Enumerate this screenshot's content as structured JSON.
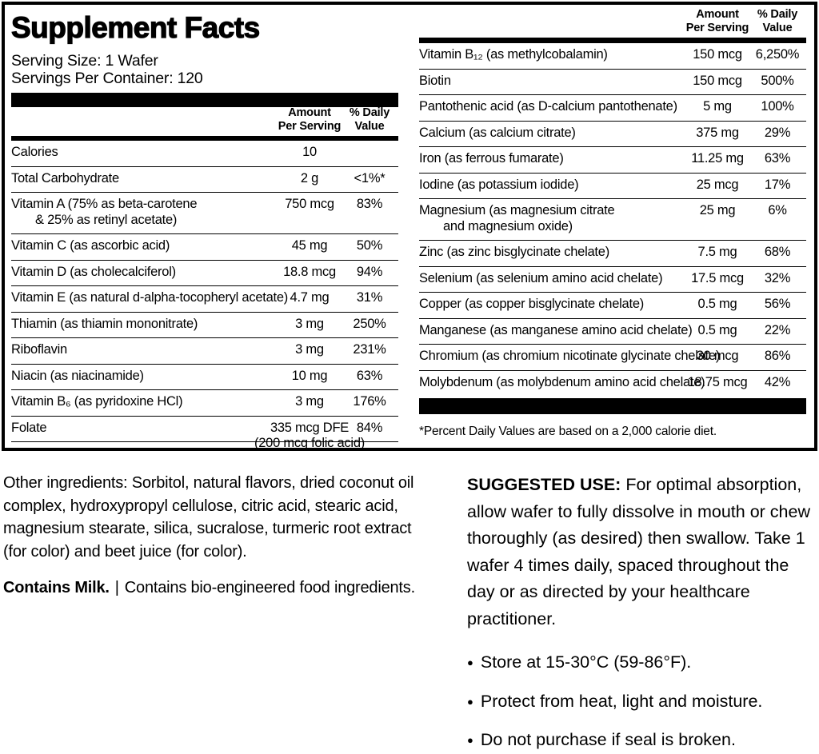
{
  "colors": {
    "ink": "#000000",
    "paper": "#ffffff"
  },
  "facts": {
    "title": "Supplement Facts",
    "serving_size": "Serving Size: 1 Wafer",
    "servings_per_container": "Servings Per Container: 120",
    "header": {
      "amount_line1": "Amount",
      "amount_line2": "Per Serving",
      "dv_line1": "% Daily",
      "dv_line2": "Value"
    },
    "left_rows": [
      {
        "label": "Calories",
        "amount": "10",
        "dv": ""
      },
      {
        "label": "Total Carbohydrate",
        "amount": "2 g",
        "dv": "<1%*"
      },
      {
        "label": "Vitamin A (75% as beta-carotene",
        "label2": "& 25% as retinyl acetate)",
        "amount": "750 mcg",
        "dv": "83%"
      },
      {
        "label": "Vitamin C (as ascorbic acid)",
        "amount": "45 mg",
        "dv": "50%"
      },
      {
        "label": "Vitamin D (as cholecalciferol)",
        "amount": "18.8 mcg",
        "dv": "94%"
      },
      {
        "label": "Vitamin E (as natural d-alpha-tocopheryl acetate)",
        "amount": "4.7 mg",
        "dv": "31%"
      },
      {
        "label": "Thiamin (as thiamin mononitrate)",
        "amount": "3 mg",
        "dv": "250%"
      },
      {
        "label": "Riboflavin",
        "amount": "3 mg",
        "dv": "231%"
      },
      {
        "label": "Niacin (as niacinamide)",
        "amount": "10 mg",
        "dv": "63%"
      },
      {
        "label": "Vitamin B₆ (as pyridoxine HCl)",
        "amount": "3 mg",
        "dv": "176%"
      },
      {
        "label": "Folate",
        "amount": "335 mcg DFE",
        "amount2": "(200 mcg folic acid)",
        "dv": "84%"
      }
    ],
    "right_rows": [
      {
        "label": "Vitamin B₁₂ (as methylcobalamin)",
        "amount": "150 mcg",
        "dv": "6,250%"
      },
      {
        "label": "Biotin",
        "amount": "150 mcg",
        "dv": "500%"
      },
      {
        "label": "Pantothenic acid (as D-calcium pantothenate)",
        "amount": "5 mg",
        "dv": "100%"
      },
      {
        "label": "Calcium (as calcium citrate)",
        "amount": "375 mg",
        "dv": "29%"
      },
      {
        "label": "Iron (as ferrous fumarate)",
        "amount": "11.25 mg",
        "dv": "63%"
      },
      {
        "label": "Iodine (as potassium iodide)",
        "amount": "25 mcg",
        "dv": "17%"
      },
      {
        "label": "Magnesium (as magnesium citrate",
        "label2": "and magnesium oxide)",
        "amount": "25 mg",
        "dv": "6%"
      },
      {
        "label": "Zinc (as zinc bisglycinate chelate)",
        "amount": "7.5 mg",
        "dv": "68%"
      },
      {
        "label": "Selenium (as selenium amino acid chelate)",
        "amount": "17.5 mcg",
        "dv": "32%"
      },
      {
        "label": "Copper (as copper bisglycinate chelate)",
        "amount": "0.5 mg",
        "dv": "56%"
      },
      {
        "label": "Manganese (as manganese amino acid chelate)",
        "amount": "0.5 mg",
        "dv": "22%"
      },
      {
        "label": "Chromium (as chromium nicotinate glycinate chelate)",
        "amount": "30 mcg",
        "dv": "86%"
      },
      {
        "label": "Molybdenum (as molybdenum amino acid chelate)",
        "amount": "18.75 mcg",
        "dv": "42%"
      }
    ],
    "footnote": "*Percent Daily Values are based on a 2,000 calorie diet."
  },
  "other_ingredients": {
    "text": "Other ingredients: Sorbitol, natural flavors, dried coconut oil complex, hydroxypropyl cellulose, citric acid, stearic acid, magnesium stearate, silica, sucralose, turmeric root extract (for color) and beet juice (for color).",
    "allergen_bold": "Contains Milk.",
    "separator": "|",
    "allergen_rest": "Contains bio-engineered food ingredients."
  },
  "suggested_use": {
    "label": "SUGGESTED USE:",
    "text": "For optimal absorption, allow wafer to fully dissolve in mouth or chew thoroughly (as desired) then swallow. Take 1 wafer 4 times daily, spaced throughout the day or as directed by your healthcare practitioner.",
    "bullets": [
      "Store at 15-30°C (59-86°F).",
      "Protect from heat, light and moisture.",
      "Do not purchase if seal is broken."
    ]
  }
}
